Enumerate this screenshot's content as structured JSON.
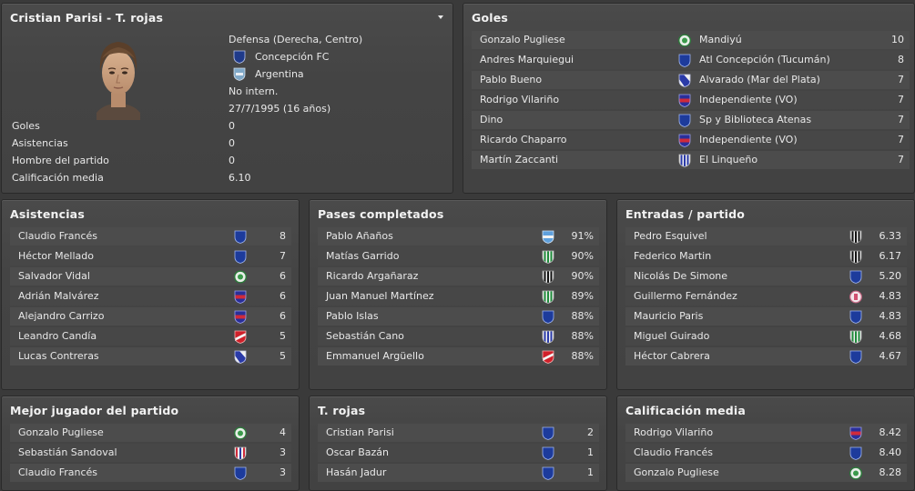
{
  "player": {
    "title": "Cristian Parisi - T. rojas",
    "position": "Defensa (Derecha, Centro)",
    "club": "Concepción FC",
    "nationality": "Argentina",
    "intl": "No intern.",
    "birth": "27/7/1995 (16 años)",
    "stats": [
      {
        "label": "Goles",
        "value": "0"
      },
      {
        "label": "Asistencias",
        "value": "0"
      },
      {
        "label": "Hombre del partido",
        "value": "0"
      },
      {
        "label": "Calificación media",
        "value": "6.10"
      }
    ]
  },
  "goles": {
    "title": "Goles",
    "rows": [
      {
        "name": "Gonzalo Pugliese",
        "club": "Mandiyú",
        "value": "10",
        "badge": "green-round"
      },
      {
        "name": "Andres Marquiegui",
        "club": "Atl Concepción (Tucumán)",
        "value": "8",
        "badge": "blue-shield"
      },
      {
        "name": "Pablo Bueno",
        "club": "Alvarado (Mar del Plata)",
        "value": "7",
        "badge": "blue-white-diag"
      },
      {
        "name": "Rodrigo Vilariño",
        "club": "Independiente (VO)",
        "value": "7",
        "badge": "red-blue"
      },
      {
        "name": "Dino",
        "club": "Sp y Biblioteca Atenas",
        "value": "7",
        "badge": "blue-shield"
      },
      {
        "name": "Ricardo Chaparro",
        "club": "Independiente (VO)",
        "value": "7",
        "badge": "red-blue"
      },
      {
        "name": "Martín Zaccanti",
        "club": "El Linqueño",
        "value": "7",
        "badge": "blue-stripes"
      }
    ]
  },
  "asistencias": {
    "title": "Asistencias",
    "rows": [
      {
        "name": "Claudio Francés",
        "value": "8",
        "badge": "blue-shield"
      },
      {
        "name": "Héctor Mellado",
        "value": "7",
        "badge": "blue-shield"
      },
      {
        "name": "Salvador Vidal",
        "value": "6",
        "badge": "green-round"
      },
      {
        "name": "Adrián Malvárez",
        "value": "6",
        "badge": "red-blue"
      },
      {
        "name": "Alejandro Carrizo",
        "value": "6",
        "badge": "red-blue"
      },
      {
        "name": "Leandro Candía",
        "value": "5",
        "badge": "red-white"
      },
      {
        "name": "Lucas Contreras",
        "value": "5",
        "badge": "blue-white-diag"
      }
    ]
  },
  "pases": {
    "title": "Pases completados",
    "rows": [
      {
        "name": "Pablo Añaños",
        "value": "91%",
        "badge": "lightblue"
      },
      {
        "name": "Matías Garrido",
        "value": "90%",
        "badge": "green-stripes"
      },
      {
        "name": "Ricardo Argañaraz",
        "value": "90%",
        "badge": "black-white"
      },
      {
        "name": "Juan Manuel Martínez",
        "value": "89%",
        "badge": "green-stripes"
      },
      {
        "name": "Pablo Islas",
        "value": "88%",
        "badge": "blue-shield"
      },
      {
        "name": "Sebastián Cano",
        "value": "88%",
        "badge": "blue-stripes"
      },
      {
        "name": "Emmanuel Argüello",
        "value": "88%",
        "badge": "red-white"
      }
    ]
  },
  "entradas": {
    "title": "Entradas / partido",
    "rows": [
      {
        "name": "Pedro Esquivel",
        "value": "6.33",
        "badge": "black-white"
      },
      {
        "name": "Federico Martin",
        "value": "6.17",
        "badge": "black-white"
      },
      {
        "name": "Nicolás De Simone",
        "value": "5.20",
        "badge": "blue-shield"
      },
      {
        "name": "Guillermo Fernández",
        "value": "4.83",
        "badge": "pink-round"
      },
      {
        "name": "Mauricio Paris",
        "value": "4.83",
        "badge": "blue-shield"
      },
      {
        "name": "Miguel Guirado",
        "value": "4.68",
        "badge": "green-stripes"
      },
      {
        "name": "Héctor Cabrera",
        "value": "4.67",
        "badge": "blue-shield"
      }
    ]
  },
  "mejor": {
    "title": "Mejor jugador del partido",
    "rows": [
      {
        "name": "Gonzalo Pugliese",
        "value": "4",
        "badge": "green-round"
      },
      {
        "name": "Sebastián Sandoval",
        "value": "3",
        "badge": "red-blue-stripes"
      },
      {
        "name": "Claudio Francés",
        "value": "3",
        "badge": "blue-shield"
      }
    ]
  },
  "rojas": {
    "title": "T. rojas",
    "rows": [
      {
        "name": "Cristian Parisi",
        "value": "2",
        "badge": "blue-shield"
      },
      {
        "name": "Oscar Bazán",
        "value": "1",
        "badge": "blue-shield"
      },
      {
        "name": "Hasán Jadur",
        "value": "1",
        "badge": "blue-shield"
      }
    ]
  },
  "calificacion": {
    "title": "Calificación media",
    "rows": [
      {
        "name": "Rodrigo Vilariño",
        "value": "8.42",
        "badge": "red-blue"
      },
      {
        "name": "Claudio Francés",
        "value": "8.40",
        "badge": "blue-shield"
      },
      {
        "name": "Gonzalo Pugliese",
        "value": "8.28",
        "badge": "green-round"
      }
    ]
  },
  "colors": {
    "background": "#3a3a3a",
    "panel": "#444444",
    "row": "#4c4c4c",
    "row_alt": "#474747",
    "text": "#e8e8e8"
  }
}
